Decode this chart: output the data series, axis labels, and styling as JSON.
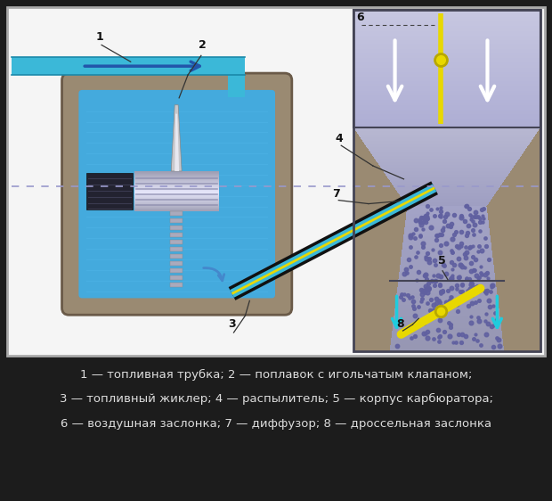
{
  "bg_color": "#1c1c1c",
  "frame_bg": "#f5f5f5",
  "pipe_color": "#3bb8d8",
  "pipe_dark": "#1a88aa",
  "pipe_arrow": "#2255aa",
  "fuel_blue": "#44aadd",
  "casing_tan": "#9a8a72",
  "cylinder_light": "#d8d8e8",
  "cylinder_dark": "#8888a8",
  "float_color": "#1a1a2a",
  "needle_color": "#c8c8d0",
  "right_purple_light": "#c0c0d8",
  "right_purple_mid": "#a0a0c0",
  "right_purple_dark": "#8888aa",
  "right_purple_deeper": "#7070a0",
  "dot_color": "#6060a0",
  "yellow": "#e8d800",
  "yellow_dark": "#b8a800",
  "cyan_arrow": "#20ccdd",
  "white_arrow": "#ffffff",
  "dashed_line": "#9999cc",
  "label_num_color": "#111111",
  "legend_color": "#dddddd",
  "legend_line1": "1 — топливная трубка; 2 — поплавок с игольчатым клапаном;",
  "legend_line2": "3 — топливный жиклер; 4 — распылитель; 5 — корпус карбюратора;",
  "legend_line3": "6 — воздушная заслонка; 7 — диффузор; 8 — дроссельная заслонка"
}
